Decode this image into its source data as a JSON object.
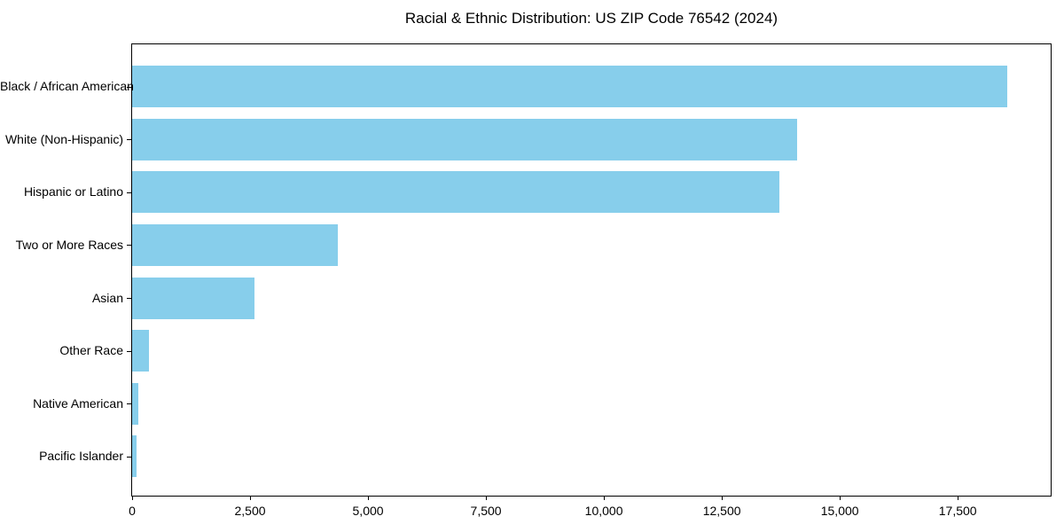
{
  "chart_data": {
    "type": "bar",
    "orientation": "horizontal",
    "title": "Racial & Ethnic Distribution: US ZIP Code 76542 (2024)",
    "xlabel": "",
    "ylabel": "",
    "categories": [
      "Black / African American",
      "White (Non-Hispanic)",
      "Hispanic or Latino",
      "Two or More Races",
      "Asian",
      "Other Race",
      "Native American",
      "Pacific Islander"
    ],
    "values": [
      18540,
      14100,
      13720,
      4360,
      2590,
      360,
      135,
      95
    ],
    "xlim": [
      0,
      19470
    ],
    "xticks": [
      0,
      2500,
      5000,
      7500,
      10000,
      12500,
      15000,
      17500
    ],
    "xtick_labels": [
      "0",
      "2,500",
      "5,000",
      "7,500",
      "10,000",
      "12,500",
      "15,000",
      "17,500"
    ],
    "bar_color": "#87CEEB",
    "grid": false,
    "legend": "none",
    "plot_border": "#000000"
  }
}
